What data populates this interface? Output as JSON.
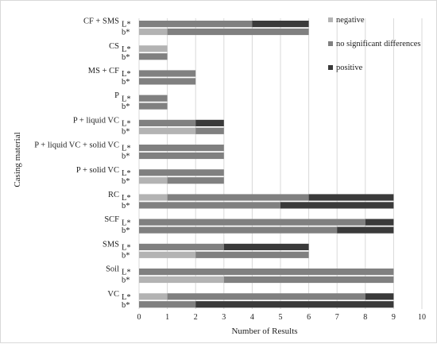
{
  "chart_data": {
    "type": "bar",
    "orientation": "horizontal",
    "stacked": true,
    "xlabel": "Number of Results",
    "ylabel": "Casing material",
    "xlim": [
      0,
      10
    ],
    "xticks": [
      "0",
      "1",
      "2",
      "3",
      "4",
      "5",
      "6",
      "7",
      "8",
      "9",
      "10"
    ],
    "grid": "vertical",
    "legend_position": "top-right",
    "series": [
      {
        "name": "negative",
        "color": "#b3b3b3"
      },
      {
        "name": "no significant differences",
        "color": "#808080"
      },
      {
        "name": "positive",
        "color": "#3a3a3a"
      }
    ],
    "groups": [
      {
        "name": "CF + SMS",
        "bars": [
          {
            "label": "L*",
            "values": [
              0,
              4,
              2
            ]
          },
          {
            "label": "b*",
            "values": [
              1,
              5,
              0
            ]
          }
        ]
      },
      {
        "name": "CS",
        "bars": [
          {
            "label": "L*",
            "values": [
              1,
              0,
              0
            ]
          },
          {
            "label": "b*",
            "values": [
              0,
              1,
              0
            ]
          }
        ]
      },
      {
        "name": "MS + CF",
        "bars": [
          {
            "label": "L*",
            "values": [
              0,
              2,
              0
            ]
          },
          {
            "label": "b*",
            "values": [
              0,
              2,
              0
            ]
          }
        ]
      },
      {
        "name": "P",
        "bars": [
          {
            "label": "L*",
            "values": [
              0,
              1,
              0
            ]
          },
          {
            "label": "b*",
            "values": [
              0,
              1,
              0
            ]
          }
        ]
      },
      {
        "name": "P + liquid VC",
        "bars": [
          {
            "label": "L*",
            "values": [
              0,
              2,
              1
            ]
          },
          {
            "label": "b*",
            "values": [
              2,
              1,
              0
            ]
          }
        ]
      },
      {
        "name": "P + liquid VC + solid VC",
        "bars": [
          {
            "label": "L*",
            "values": [
              0,
              3,
              0
            ]
          },
          {
            "label": "b*",
            "values": [
              0,
              3,
              0
            ]
          }
        ]
      },
      {
        "name": "P + solid VC",
        "bars": [
          {
            "label": "L*",
            "values": [
              0,
              3,
              0
            ]
          },
          {
            "label": "b*",
            "values": [
              1,
              2,
              0
            ]
          }
        ]
      },
      {
        "name": "RC",
        "bars": [
          {
            "label": "L*",
            "values": [
              1,
              5,
              3
            ]
          },
          {
            "label": "b*",
            "values": [
              0,
              5,
              4
            ]
          }
        ]
      },
      {
        "name": "SCF",
        "bars": [
          {
            "label": "L*",
            "values": [
              0,
              8,
              1
            ]
          },
          {
            "label": "b*",
            "values": [
              0,
              7,
              2
            ]
          }
        ]
      },
      {
        "name": "SMS",
        "bars": [
          {
            "label": "L*",
            "values": [
              0,
              3,
              3
            ]
          },
          {
            "label": "b*",
            "values": [
              2,
              4,
              0
            ]
          }
        ]
      },
      {
        "name": "Soil",
        "bars": [
          {
            "label": "L*",
            "values": [
              0,
              9,
              0
            ]
          },
          {
            "label": "b*",
            "values": [
              3,
              6,
              0
            ]
          }
        ]
      },
      {
        "name": "VC",
        "bars": [
          {
            "label": "L*",
            "values": [
              1,
              7,
              1
            ]
          },
          {
            "label": "b*",
            "values": [
              0,
              2,
              7
            ]
          }
        ]
      }
    ]
  }
}
